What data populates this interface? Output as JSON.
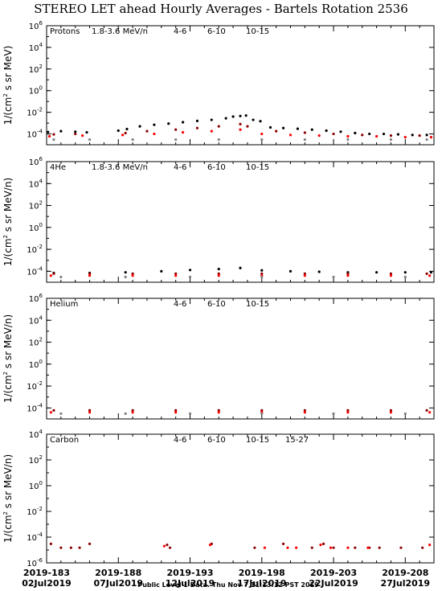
{
  "figure": {
    "title": "STEREO LET ahead Hourly Averages - Bartels Rotation 2536",
    "footer": "Public Level 1 Data. Thu Nov  7 11:13:12 PST 2019",
    "ylabel_prefix": "1/(cm",
    "ylabel_sup": "2",
    "ylabel_mid_protons": " s sr MeV)",
    "ylabel_mid_heavy": " s sr MeV/n)"
  },
  "colors": {
    "4-6": "#8b0000",
    "6-10": "#ff0000",
    "10-15": "#808080",
    "15-27": "#0000ff",
    "protons_1.8-3.6": "#000000",
    "axis": "#000000"
  },
  "chart_data": [
    {
      "type": "scatter",
      "panel": "Protons",
      "energy_label": "1.8-3.6 MeV/n",
      "yscale": "log",
      "ylim": [
        1e-05,
        1000000
      ],
      "ytick_exponents": [
        -4,
        -2,
        0,
        2,
        4,
        6
      ],
      "xlim": [
        183,
        210
      ],
      "xticks": [
        {
          "doy_label": "2019-183",
          "date_label": "02Jul2019",
          "doy": 183
        },
        {
          "doy_label": "2019-188",
          "date_label": "07Jul2019",
          "doy": 188
        },
        {
          "doy_label": "2019-193",
          "date_label": "12Jul2019",
          "doy": 193
        },
        {
          "doy_label": "2019-198",
          "date_label": "17Jul2019",
          "doy": 198
        },
        {
          "doy_label": "2019-203",
          "date_label": "22Jul2019",
          "doy": 203
        },
        {
          "doy_label": "2019-208",
          "date_label": "27Jul2019",
          "doy": 208
        }
      ],
      "legend": [
        "4-6",
        "6-10",
        "10-15"
      ],
      "series": [
        {
          "name": "1.8-3.6 MeV/n",
          "color": "#000000",
          "points": [
            [
              183.1,
              0.00015
            ],
            [
              184.0,
              0.00018
            ],
            [
              185.0,
              0.00016
            ],
            [
              185.8,
              0.00014
            ],
            [
              188.0,
              0.0002
            ],
            [
              188.6,
              0.00028
            ],
            [
              189.5,
              0.0005
            ],
            [
              190.5,
              0.0007
            ],
            [
              191.5,
              0.0009
            ],
            [
              192.5,
              0.0012
            ],
            [
              193.5,
              0.0016
            ],
            [
              194.5,
              0.002
            ],
            [
              195.5,
              0.0028
            ],
            [
              196.0,
              0.004
            ],
            [
              196.5,
              0.0045
            ],
            [
              196.9,
              0.005
            ],
            [
              197.4,
              0.002
            ],
            [
              197.9,
              0.0015
            ],
            [
              198.6,
              0.0004
            ],
            [
              199.5,
              0.00035
            ],
            [
              200.5,
              0.0003
            ],
            [
              201.5,
              0.00025
            ],
            [
              202.5,
              0.0002
            ],
            [
              203.5,
              0.00016
            ],
            [
              204.5,
              0.00012
            ],
            [
              205.5,
              0.0001
            ],
            [
              206.5,
              0.0001
            ],
            [
              207.5,
              9e-05
            ],
            [
              208.5,
              8e-05
            ],
            [
              209.5,
              8e-05
            ]
          ]
        },
        {
          "name": "4-6",
          "color": "#8b0000",
          "points": [
            [
              183.5,
              9e-05
            ],
            [
              185.0,
              0.0001
            ],
            [
              188.5,
              0.00012
            ],
            [
              190.0,
              0.00018
            ],
            [
              192.0,
              0.00025
            ],
            [
              193.5,
              0.00035
            ],
            [
              195.0,
              0.0005
            ],
            [
              196.5,
              0.0008
            ],
            [
              197.0,
              0.0005
            ],
            [
              199.0,
              0.00018
            ],
            [
              201.0,
              0.00013
            ],
            [
              203.0,
              0.0001
            ],
            [
              205.0,
              8e-05
            ],
            [
              207.0,
              7e-05
            ],
            [
              209.0,
              7e-05
            ]
          ]
        },
        {
          "name": "6-10",
          "color": "#ff0000",
          "points": [
            [
              183.2,
              6e-05
            ],
            [
              185.5,
              7e-05
            ],
            [
              188.3,
              8e-05
            ],
            [
              190.5,
              0.0001
            ],
            [
              192.5,
              0.00014
            ],
            [
              194.5,
              0.00018
            ],
            [
              196.5,
              0.00025
            ],
            [
              198.0,
              0.0001
            ],
            [
              200.0,
              8e-05
            ],
            [
              202.0,
              7e-05
            ],
            [
              204.0,
              6e-05
            ],
            [
              206.0,
              6e-05
            ],
            [
              208.0,
              5e-05
            ],
            [
              209.8,
              5e-05
            ]
          ]
        },
        {
          "name": "10-15",
          "color": "#808080",
          "points": [
            [
              183.5,
              3e-05
            ],
            [
              186.0,
              3e-05
            ],
            [
              189.0,
              3e-05
            ],
            [
              192.0,
              3e-05
            ],
            [
              195.0,
              3e-05
            ],
            [
              198.0,
              3e-05
            ],
            [
              201.0,
              3e-05
            ],
            [
              204.0,
              3e-05
            ],
            [
              207.0,
              3e-05
            ],
            [
              209.5,
              3e-05
            ]
          ]
        }
      ]
    },
    {
      "type": "scatter",
      "panel": "4He",
      "energy_label": "1.8-3.6 MeV/n",
      "yscale": "log",
      "ylim": [
        1e-05,
        1000000
      ],
      "ytick_exponents": [
        -4,
        -2,
        0,
        2,
        4,
        6
      ],
      "xlim": [
        183,
        210
      ],
      "legend": [
        "4-6",
        "6-10",
        "10-15"
      ],
      "series": [
        {
          "name": "1.8-3.6 MeV/n",
          "color": "#000000",
          "points": [
            [
              183.5,
              7e-05
            ],
            [
              186.0,
              7e-05
            ],
            [
              188.5,
              8e-05
            ],
            [
              191.0,
              0.0001
            ],
            [
              193.0,
              0.00013
            ],
            [
              195.0,
              0.00016
            ],
            [
              196.5,
              0.0002
            ],
            [
              198.0,
              0.00012
            ],
            [
              200.0,
              0.0001
            ],
            [
              202.0,
              9e-05
            ],
            [
              204.0,
              8e-05
            ],
            [
              206.0,
              8e-05
            ],
            [
              208.0,
              8e-05
            ],
            [
              209.8,
              8e-05
            ]
          ]
        },
        {
          "name": "4-6",
          "color": "#8b0000",
          "points": [
            [
              183.5,
              6e-05
            ],
            [
              186.0,
              6e-05
            ],
            [
              189.0,
              6e-05
            ],
            [
              192.0,
              6e-05
            ],
            [
              195.0,
              6e-05
            ],
            [
              198.0,
              6e-05
            ],
            [
              201.0,
              6e-05
            ],
            [
              204.0,
              6e-05
            ],
            [
              207.0,
              6e-05
            ],
            [
              209.5,
              6e-05
            ]
          ]
        },
        {
          "name": "6-10",
          "color": "#ff0000",
          "points": [
            [
              183.3,
              4e-05
            ],
            [
              186.0,
              4e-05
            ],
            [
              189.0,
              4e-05
            ],
            [
              192.0,
              4e-05
            ],
            [
              195.0,
              4e-05
            ],
            [
              198.0,
              4e-05
            ],
            [
              201.0,
              4e-05
            ],
            [
              204.0,
              4e-05
            ],
            [
              207.0,
              4e-05
            ],
            [
              209.7,
              4e-05
            ]
          ]
        },
        {
          "name": "10-15",
          "color": "#808080",
          "points": [
            [
              184.0,
              3e-05
            ],
            [
              188.5,
              3e-05
            ],
            [
              193.0,
              3e-05
            ],
            [
              198.0,
              3e-05
            ],
            [
              203.0,
              3e-05
            ],
            [
              208.0,
              3e-05
            ]
          ]
        }
      ]
    },
    {
      "type": "scatter",
      "panel": "Helium",
      "yscale": "log",
      "ylim": [
        1e-05,
        1000000
      ],
      "ytick_exponents": [
        -4,
        -2,
        0,
        2,
        4,
        6
      ],
      "xlim": [
        183,
        210
      ],
      "legend": [
        "4-6",
        "6-10",
        "10-15"
      ],
      "series": [
        {
          "name": "4-6",
          "color": "#8b0000",
          "points": [
            [
              183.5,
              6e-05
            ],
            [
              186.0,
              6e-05
            ],
            [
              189.0,
              6e-05
            ],
            [
              192.0,
              6e-05
            ],
            [
              195.0,
              6e-05
            ],
            [
              198.0,
              6e-05
            ],
            [
              201.0,
              6e-05
            ],
            [
              204.0,
              6e-05
            ],
            [
              207.0,
              6e-05
            ],
            [
              209.5,
              6e-05
            ]
          ]
        },
        {
          "name": "6-10",
          "color": "#ff0000",
          "points": [
            [
              183.3,
              4e-05
            ],
            [
              186.0,
              4e-05
            ],
            [
              189.0,
              4e-05
            ],
            [
              192.0,
              4e-05
            ],
            [
              195.0,
              4e-05
            ],
            [
              198.0,
              4e-05
            ],
            [
              201.0,
              4e-05
            ],
            [
              204.0,
              4e-05
            ],
            [
              207.0,
              4e-05
            ],
            [
              209.7,
              4e-05
            ]
          ]
        },
        {
          "name": "10-15",
          "color": "#808080",
          "points": [
            [
              184.0,
              3e-05
            ],
            [
              188.5,
              3e-05
            ],
            [
              193.0,
              3e-05
            ],
            [
              198.0,
              3e-05
            ],
            [
              203.0,
              3e-05
            ],
            [
              208.0,
              3e-05
            ]
          ]
        }
      ]
    },
    {
      "type": "scatter",
      "panel": "Carbon",
      "yscale": "log",
      "ylim": [
        1e-06,
        10000
      ],
      "ytick_exponents": [
        -6,
        -4,
        -2,
        0,
        2,
        4
      ],
      "xlim": [
        183,
        210
      ],
      "legend": [
        "4-6",
        "6-10",
        "10-15",
        "15-27"
      ],
      "series": [
        {
          "name": "4-6",
          "color": "#8b0000",
          "points": [
            [
              183.3,
              3e-05
            ],
            [
              184.0,
              1.5e-05
            ],
            [
              184.7,
              1.5e-05
            ],
            [
              185.3,
              1.5e-05
            ],
            [
              186.0,
              3e-05
            ],
            [
              191.4,
              2.5e-05
            ],
            [
              191.6,
              1.5e-05
            ],
            [
              194.5,
              3e-05
            ],
            [
              197.5,
              1.5e-05
            ],
            [
              199.5,
              3e-05
            ],
            [
              201.5,
              1.5e-05
            ],
            [
              202.3,
              3e-05
            ],
            [
              203.0,
              1.5e-05
            ],
            [
              204.5,
              1.5e-05
            ],
            [
              205.5,
              1.5e-05
            ],
            [
              206.2,
              1.5e-05
            ],
            [
              207.7,
              1.5e-05
            ],
            [
              209.2,
              1.5e-05
            ]
          ]
        },
        {
          "name": "6-10",
          "color": "#ff0000",
          "points": [
            [
              191.2,
              2e-05
            ],
            [
              194.4,
              2.5e-05
            ],
            [
              198.2,
              1.5e-05
            ],
            [
              199.8,
              1.5e-05
            ],
            [
              200.4,
              1.5e-05
            ],
            [
              202.1,
              2.5e-05
            ],
            [
              202.8,
              1.5e-05
            ],
            [
              204.0,
              1.5e-05
            ],
            [
              205.4,
              1.5e-05
            ],
            [
              209.7,
              2.5e-05
            ]
          ]
        },
        {
          "name": "10-15",
          "color": "#808080",
          "points": []
        },
        {
          "name": "15-27",
          "color": "#0000ff",
          "points": []
        }
      ]
    }
  ]
}
